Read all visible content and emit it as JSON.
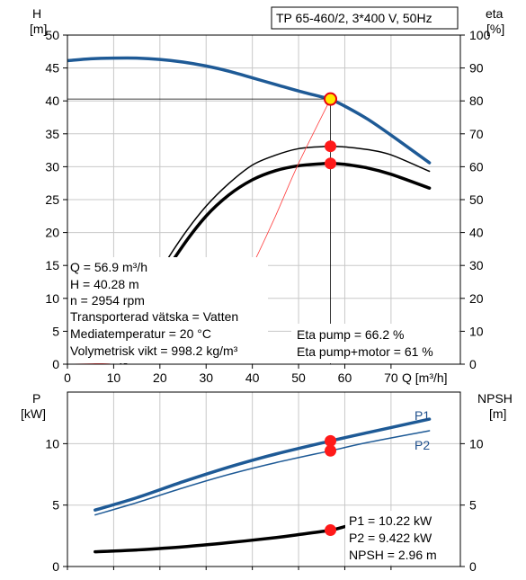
{
  "chart_data": [
    {
      "type": "line",
      "panel": "top",
      "title": "TP 65-460/2, 3*400 V, 50Hz",
      "xlabel": "Q [m³/h]",
      "ylabel_left": [
        "H",
        "[m]"
      ],
      "ylabel_right": [
        "eta",
        "[%]"
      ],
      "xlim": [
        0,
        85
      ],
      "ylim_left": [
        0,
        50
      ],
      "ylim_right": [
        0,
        100
      ],
      "xticks": [
        0,
        10,
        20,
        30,
        40,
        50,
        60,
        70
      ],
      "yticks_left": [
        0,
        5,
        10,
        15,
        20,
        25,
        30,
        35,
        40,
        45,
        50
      ],
      "yticks_right": [
        0,
        10,
        20,
        30,
        40,
        50,
        60,
        70,
        80,
        90,
        100
      ],
      "grid": true,
      "series": [
        {
          "axis": "left",
          "color": "#1e5a96",
          "width": 3.5,
          "x": [
            0,
            5,
            10,
            15,
            20,
            25,
            30,
            35,
            40,
            45,
            50,
            55,
            56.9,
            60,
            65,
            70,
            78.3
          ],
          "y": [
            46.1,
            46.4,
            46.5,
            46.5,
            46.3,
            45.9,
            45.3,
            44.5,
            43.5,
            42.5,
            41.5,
            40.6,
            40.28,
            39.2,
            37.2,
            34.8,
            30.6
          ]
        },
        {
          "axis": "right",
          "color": "#000000",
          "width": 1.5,
          "x": [
            11.5,
            15,
            20,
            25,
            30,
            35,
            40,
            45,
            50,
            55,
            56.9,
            60,
            65,
            70,
            78.3
          ],
          "y": [
            0,
            14,
            28,
            39,
            48,
            55,
            60.5,
            63.5,
            65.5,
            66.1,
            66.2,
            66.0,
            65.2,
            63.6,
            58.6
          ]
        },
        {
          "axis": "right",
          "color": "#000000",
          "width": 3.5,
          "x": [
            12.5,
            15,
            20,
            25,
            30,
            35,
            40,
            45,
            50,
            55,
            56.9,
            60,
            65,
            70,
            78.3
          ],
          "y": [
            0,
            10,
            25,
            36,
            45,
            51.5,
            56,
            58.8,
            60.3,
            60.9,
            61.0,
            60.7,
            59.6,
            57.7,
            53.5
          ]
        },
        {
          "axis": "left",
          "color": "#ff3b3b",
          "width": 0.8,
          "x": [
            0,
            10,
            20,
            30,
            36,
            40,
            45,
            50,
            56.9
          ],
          "y": [
            0,
            0.2,
            0.9,
            4.6,
            10.0,
            15.0,
            22.5,
            30.5,
            40.28
          ]
        }
      ],
      "operating_point": {
        "x": 56.9,
        "y": 40.28
      },
      "eta_points": [
        66.2,
        61
      ],
      "annotations_left": [
        "Q = 56.9 m³/h",
        "H = 40.28 m",
        "n = 2954 rpm",
        "Transporterad vätska = Vatten",
        "Mediatemperatur = 20 °C",
        "Volymetrisk vikt = 998.2 kg/m³"
      ],
      "annotations_right": [
        "Eta pump = 66.2 %",
        "Eta pump+motor = 61 %"
      ]
    },
    {
      "type": "line",
      "panel": "bottom",
      "ylabel_left": [
        "P",
        "[kW]"
      ],
      "ylabel_right": [
        "NPSH",
        "[m]"
      ],
      "xlim": [
        0,
        85
      ],
      "ylim_left": [
        0,
        14.2
      ],
      "ylim_right": [
        0,
        14.2
      ],
      "yticks_left": [
        0,
        5,
        10
      ],
      "yticks_right": [
        0,
        5,
        10
      ],
      "grid": true,
      "series": [
        {
          "name": "P1",
          "axis": "left",
          "color": "#1e5a96",
          "width": 3.5,
          "x": [
            6,
            15,
            25,
            35,
            45,
            56.9,
            65,
            78.3
          ],
          "y": [
            4.6,
            5.6,
            6.9,
            8.1,
            9.15,
            10.22,
            10.9,
            12.0
          ]
        },
        {
          "name": "P2",
          "axis": "left",
          "color": "#1e5a96",
          "width": 1.5,
          "x": [
            6,
            15,
            25,
            35,
            45,
            56.9,
            65,
            78.3
          ],
          "y": [
            4.2,
            5.2,
            6.4,
            7.5,
            8.45,
            9.422,
            10.1,
            11.05
          ]
        },
        {
          "axis": "right",
          "color": "#000000",
          "width": 3.5,
          "x": [
            6,
            15,
            25,
            35,
            45,
            50,
            56.9,
            60
          ],
          "y": [
            1.2,
            1.35,
            1.6,
            1.95,
            2.35,
            2.6,
            2.96,
            3.25
          ]
        }
      ],
      "points": [
        {
          "x": 56.9,
          "y": 10.22
        },
        {
          "x": 56.9,
          "y": 9.422
        },
        {
          "x": 56.9,
          "y": 2.96
        }
      ],
      "annotations": [
        "P1 = 10.22 kW",
        "P2 = 9.422 kW",
        "NPSH = 2.96 m"
      ]
    }
  ]
}
